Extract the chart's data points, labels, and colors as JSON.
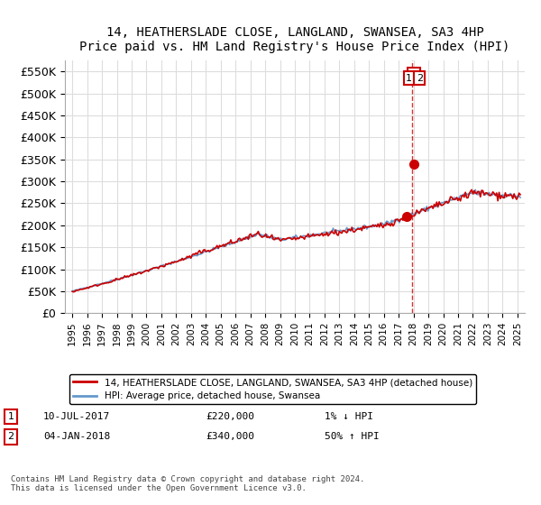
{
  "title": "14, HEATHERSLADE CLOSE, LANGLAND, SWANSEA, SA3 4HP",
  "subtitle": "Price paid vs. HM Land Registry's House Price Index (HPI)",
  "ylabel_ticks": [
    "£0",
    "£50K",
    "£100K",
    "£150K",
    "£200K",
    "£250K",
    "£300K",
    "£350K",
    "£400K",
    "£450K",
    "£500K",
    "£550K"
  ],
  "ytick_values": [
    0,
    50000,
    100000,
    150000,
    200000,
    250000,
    300000,
    350000,
    400000,
    450000,
    500000,
    550000
  ],
  "ylim": [
    0,
    575000
  ],
  "legend_line1": "14, HEATHERSLADE CLOSE, LANGLAND, SWANSEA, SA3 4HP (detached house)",
  "legend_line2": "HPI: Average price, detached house, Swansea",
  "transaction1_date": "10-JUL-2017",
  "transaction1_price": "£220,000",
  "transaction1_hpi": "1% ↓ HPI",
  "transaction2_date": "04-JAN-2018",
  "transaction2_price": "£340,000",
  "transaction2_hpi": "50% ↑ HPI",
  "footnote": "Contains HM Land Registry data © Crown copyright and database right 2024.\nThis data is licensed under the Open Government Licence v3.0.",
  "red_color": "#cc0000",
  "blue_color": "#6699cc",
  "dashed_color": "#cc0000",
  "background_color": "#ffffff",
  "grid_color": "#dddddd"
}
